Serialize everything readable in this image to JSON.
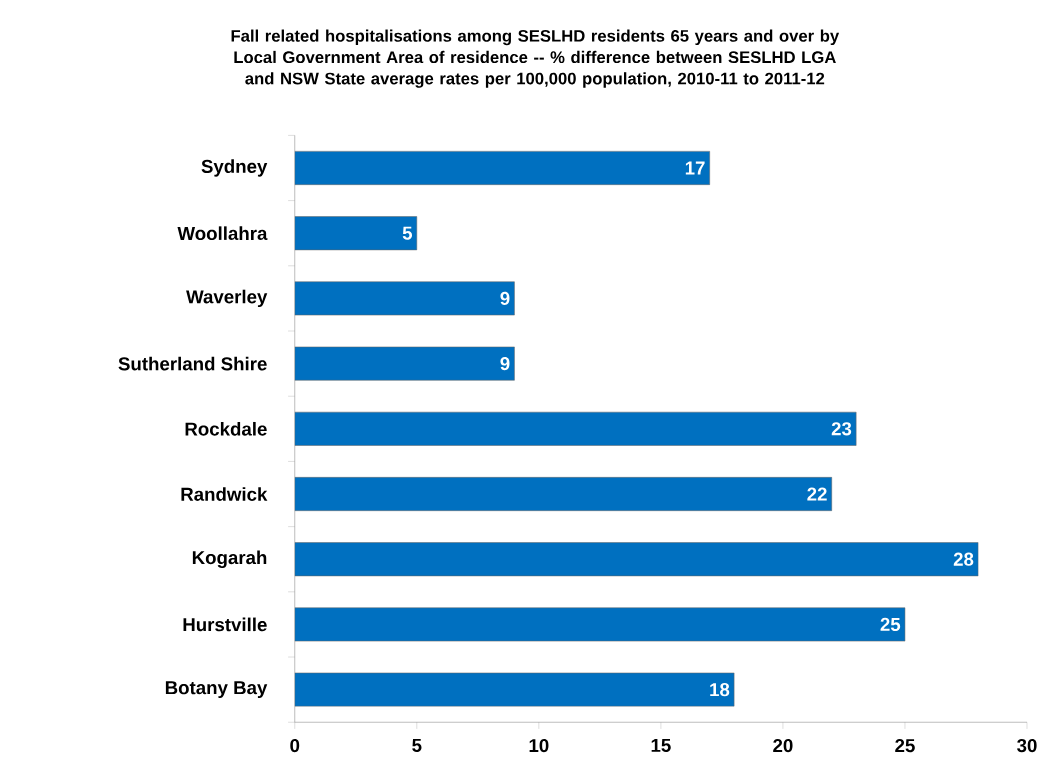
{
  "chart_data": {
    "type": "bar",
    "orientation": "horizontal",
    "title": "Fall related hospitalisations among SESLHD residents 65 years and over by Local Government Area of residence -- % difference between SESLHD LGA and NSW State average rates per 100,000 population, 2010-11 to 2011-12",
    "categories": [
      "Sydney",
      "Woollahra",
      "Waverley",
      "Sutherland Shire",
      "Rockdale",
      "Randwick",
      "Kogarah",
      "Hurstville",
      "Botany Bay"
    ],
    "values": [
      17,
      5,
      9,
      9,
      23,
      22,
      28,
      25,
      18
    ],
    "color": "#0070c0",
    "data_labels": true,
    "xlim": [
      0,
      30
    ],
    "xticks": [
      0,
      5,
      10,
      15,
      20,
      25,
      30
    ]
  }
}
